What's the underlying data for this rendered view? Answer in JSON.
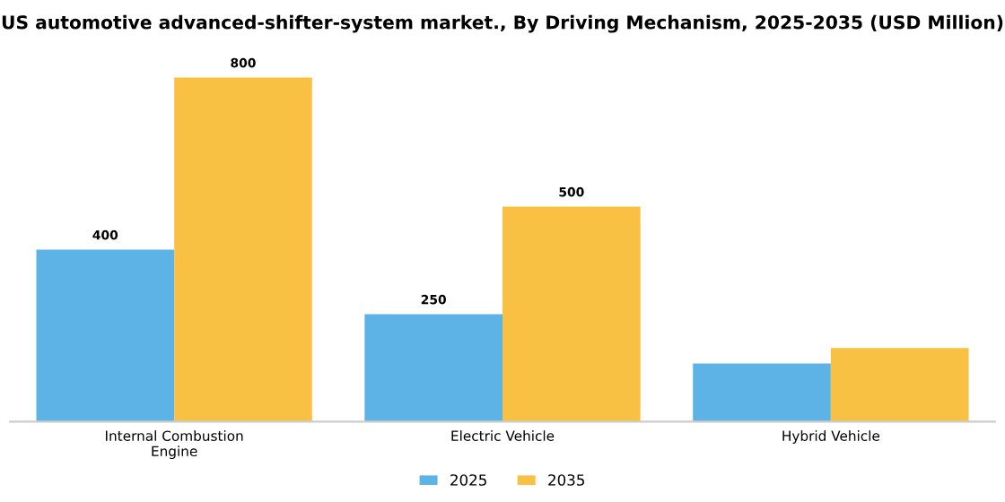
{
  "chart_data": {
    "type": "bar",
    "title": "US automotive advanced-shifter-system market., By Driving Mechanism, 2025-2035 (USD Million)",
    "categories": [
      "Internal Combustion\nEngine",
      "Electric Vehicle",
      "Hybrid Vehicle"
    ],
    "series": [
      {
        "name": "2025",
        "color": "#5db3e6",
        "values": [
          400,
          250,
          135
        ],
        "value_labels": [
          "400",
          "250",
          null
        ]
      },
      {
        "name": "2035",
        "color": "#f9c143",
        "values": [
          800,
          500,
          171
        ],
        "value_labels": [
          "800",
          "500",
          null
        ]
      }
    ],
    "legend": "bottom",
    "grid": false
  }
}
